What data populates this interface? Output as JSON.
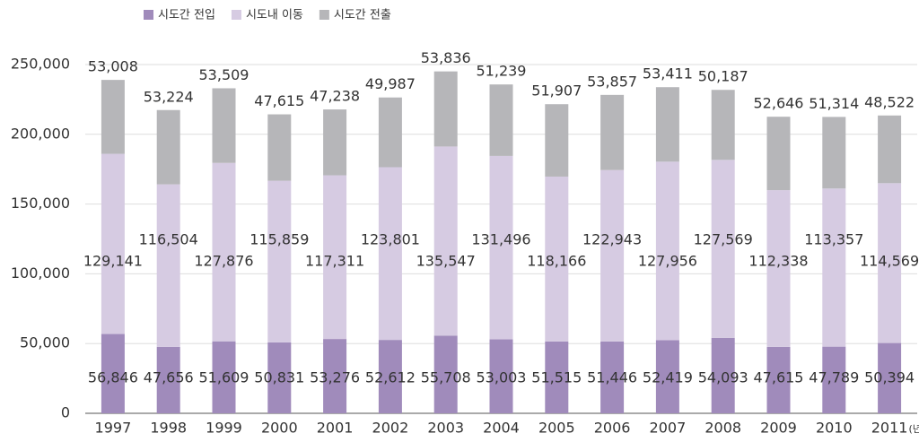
{
  "chart_data": {
    "type": "stacked_bar",
    "categories": [
      "1997",
      "1998",
      "1999",
      "2000",
      "2001",
      "2002",
      "2003",
      "2004",
      "2005",
      "2006",
      "2007",
      "2008",
      "2009",
      "2010",
      "2011"
    ],
    "x_unit": "(년)",
    "series": [
      {
        "name": "시도간 전입",
        "color": "#a08bbb",
        "values": [
          56846,
          47656,
          51609,
          50831,
          53276,
          52612,
          55708,
          53003,
          51515,
          51446,
          52419,
          54093,
          47615,
          47789,
          50394
        ],
        "value_labels": [
          "56,846",
          "47,656",
          "51,609",
          "50,831",
          "53,276",
          "52,612",
          "55,708",
          "53,003",
          "51,515",
          "51,446",
          "52,419",
          "54,093",
          "47,615",
          "47,789",
          "50,394"
        ]
      },
      {
        "name": "시도내 이동",
        "color": "#d6cbe2",
        "values": [
          129141,
          116504,
          127876,
          115859,
          117311,
          123801,
          135547,
          131496,
          118166,
          122943,
          127956,
          127569,
          112338,
          113357,
          114569
        ],
        "value_labels": [
          "129,141",
          "116,504",
          "127,876",
          "115,859",
          "117,311",
          "123,801",
          "135,547",
          "131,496",
          "118,166",
          "122,943",
          "127,956",
          "127,569",
          "112,338",
          "113,357",
          "114,569"
        ]
      },
      {
        "name": "시도간 전출",
        "color": "#b6b6b9",
        "values": [
          53008,
          53224,
          53509,
          47615,
          47238,
          49987,
          53836,
          51239,
          51907,
          53857,
          53411,
          50187,
          52646,
          51314,
          48522
        ],
        "value_labels": [
          "53,008",
          "53,224",
          "53,509",
          "47,615",
          "47,238",
          "49,987",
          "53,836",
          "51,239",
          "51,907",
          "53,857",
          "53,411",
          "50,187",
          "52,646",
          "51,314",
          "48,522"
        ]
      }
    ],
    "ylim": [
      0,
      250000
    ],
    "yticks": [
      0,
      {
        "value": 50000,
        "label": "50,000"
      },
      {
        "value": 100000,
        "label": "100,000"
      },
      {
        "value": 150000,
        "label": "150,000"
      },
      {
        "value": 200000,
        "label": "200,000"
      },
      {
        "value": 250000,
        "label": "250,000"
      }
    ],
    "grid": true
  }
}
